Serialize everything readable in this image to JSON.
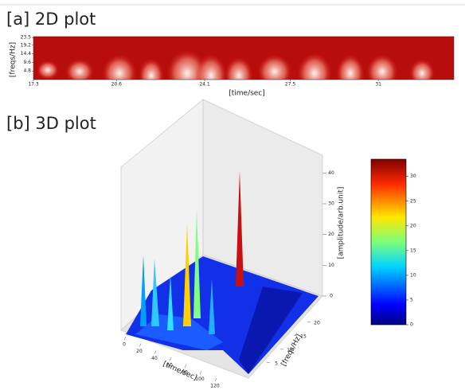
{
  "chart_data": [
    {
      "type": "heatmap",
      "title": "[a] 2D plot",
      "xlabel": "[time/sec]",
      "ylabel": "[freqs/Hz]",
      "xlim": [
        17.3,
        34.0
      ],
      "xticks": [
        17.3,
        20.6,
        24.1,
        27.5,
        31.0
      ],
      "ylim": [
        0,
        24
      ],
      "yticks": [
        23.5,
        19.2,
        14.4,
        9.6,
        4.8
      ]
    },
    {
      "type": "surface3d",
      "title": "[b] 3D plot",
      "xlabel": "[time/sec]",
      "ylabel": "[freqs/Hz]",
      "zlabel": "[amplitude/arb.unit]",
      "xlim": [
        0,
        140
      ],
      "xticks": [
        0,
        20,
        40,
        60,
        80,
        100,
        120
      ],
      "ylim": [
        0,
        25
      ],
      "yticks": [
        5,
        10,
        15,
        20
      ],
      "zlim": [
        0,
        45
      ],
      "zticks": [
        0,
        10,
        20,
        30,
        40
      ],
      "clim": [
        0,
        33.5
      ],
      "cticks": [
        0,
        5,
        10,
        15,
        20,
        25,
        30
      ]
    }
  ]
}
